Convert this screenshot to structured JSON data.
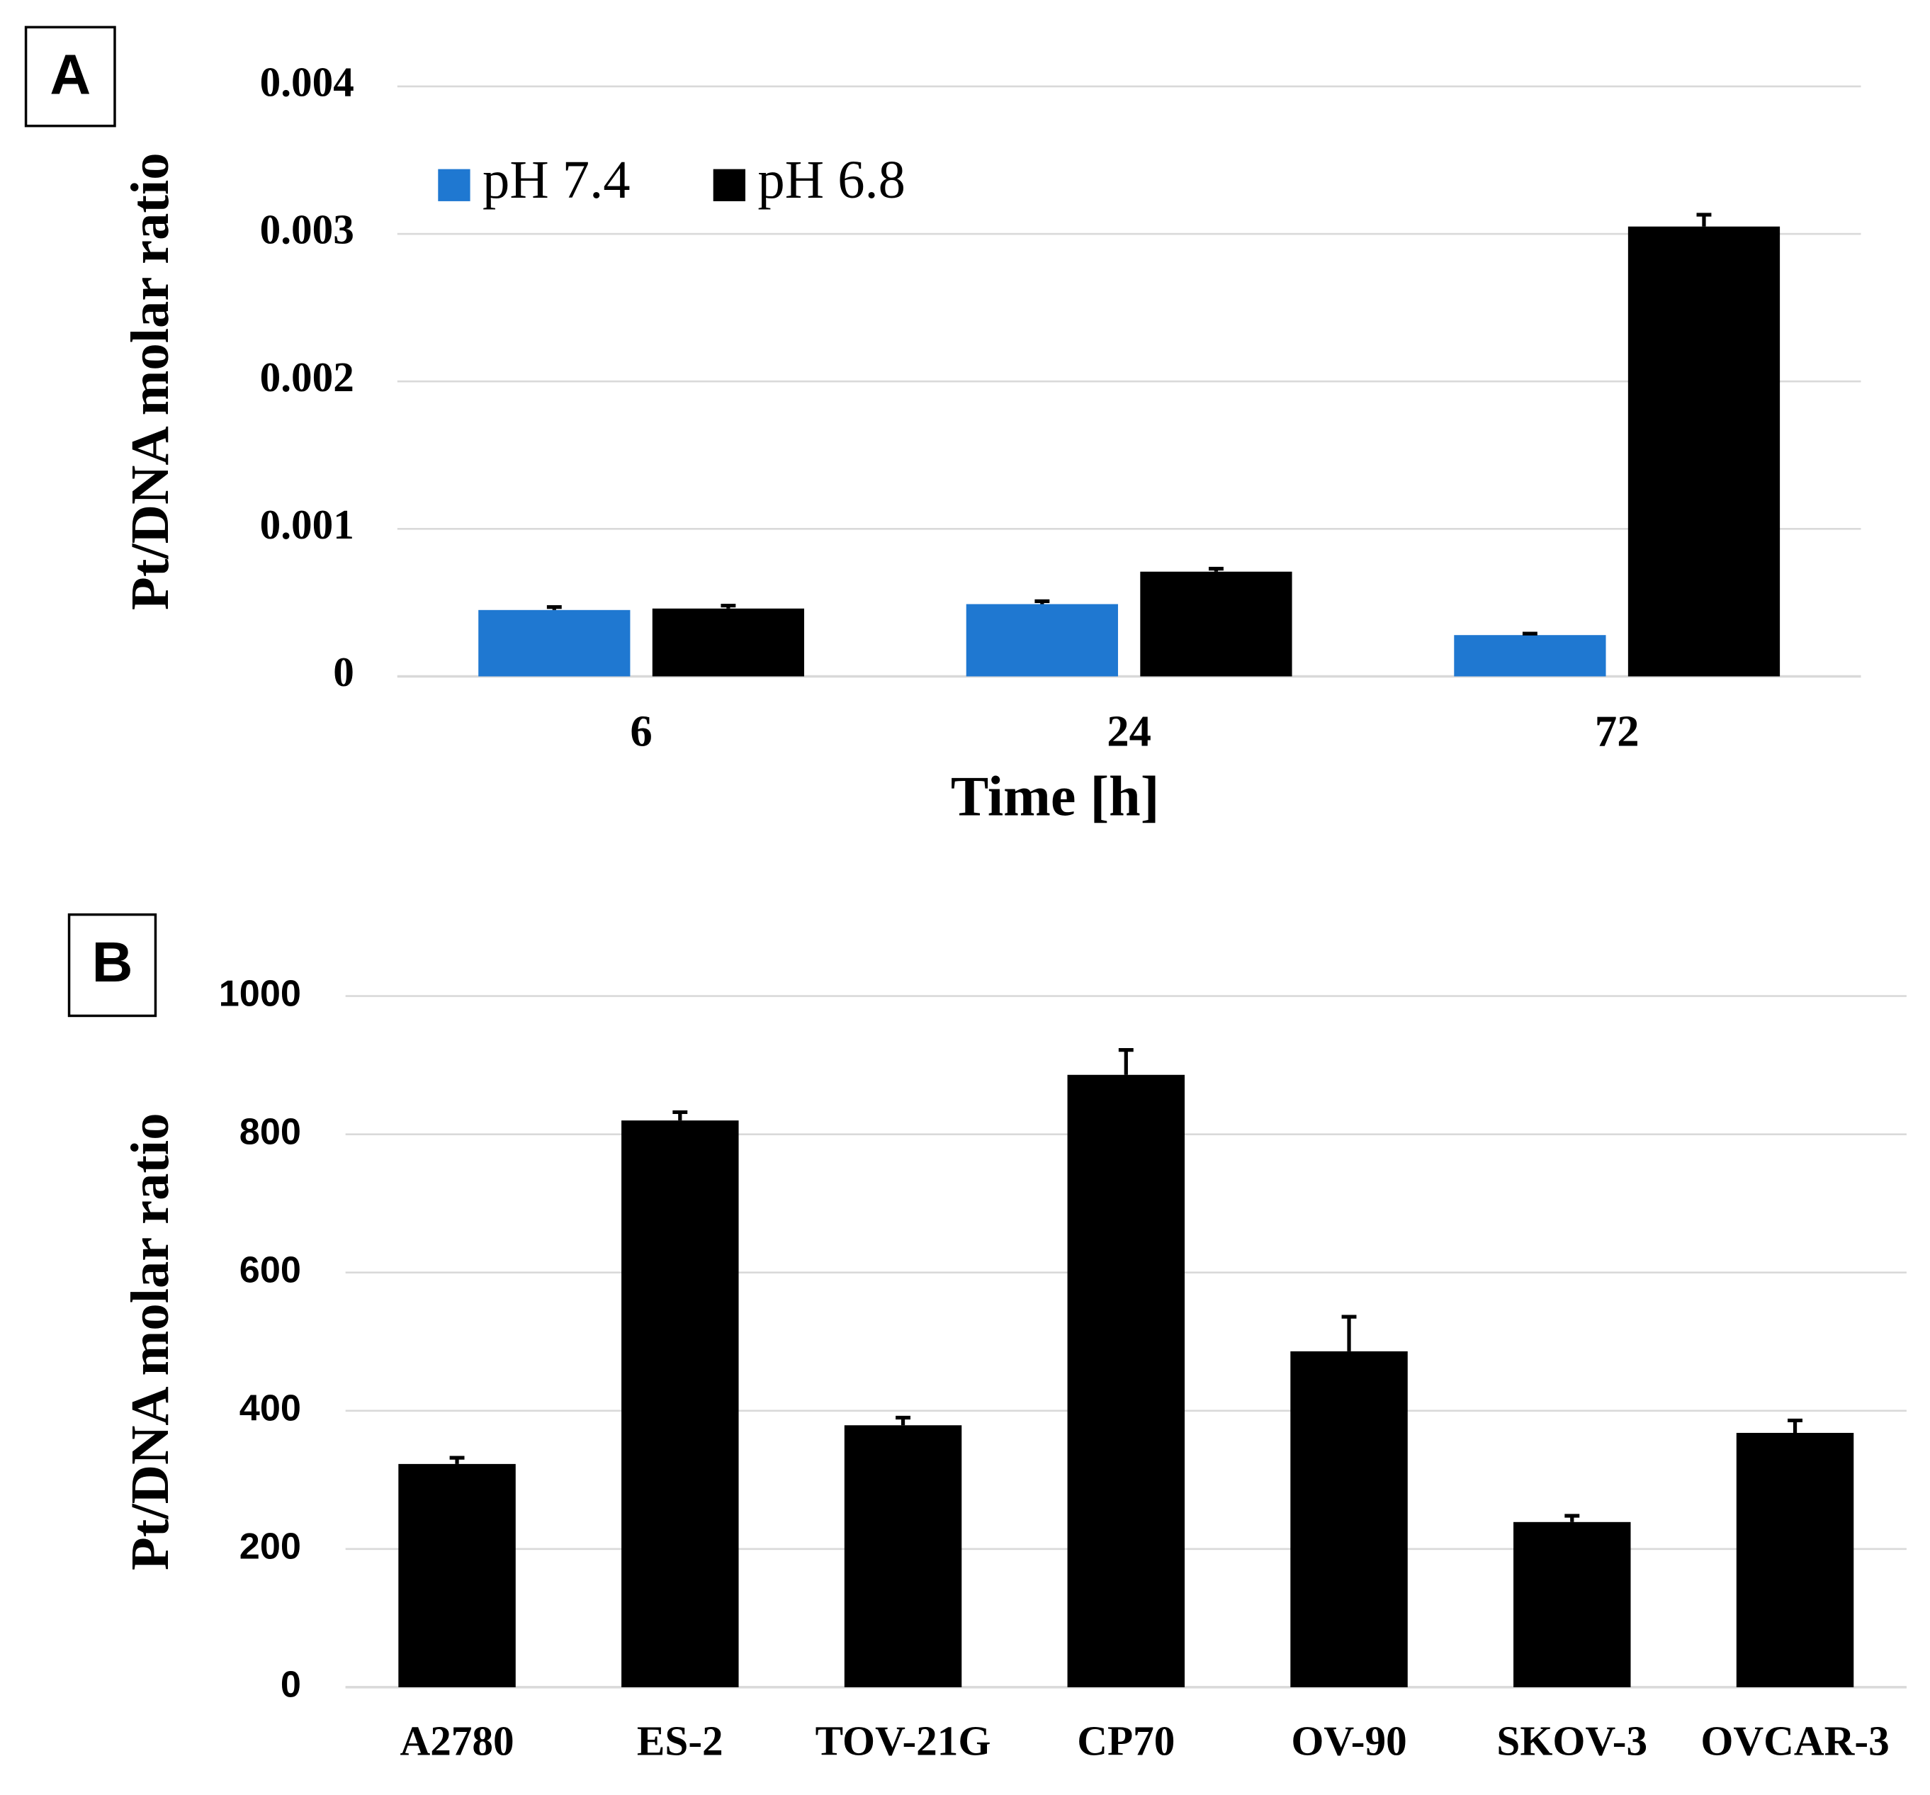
{
  "chart_data": [
    {
      "type": "bar",
      "panel_label": "A",
      "y_label": "Pt/DNA  molar ratio",
      "x_label": "Time [h]",
      "categories": [
        "6",
        "24",
        "72"
      ],
      "series": [
        {
          "name": "pH 7.4",
          "color": "#1f78d1",
          "values": [
            0.00045,
            0.00049,
            0.00028
          ],
          "errors": [
            2e-05,
            2e-05,
            1e-05
          ]
        },
        {
          "name": "pH 6.8",
          "color": "#000000",
          "values": [
            0.00046,
            0.00071,
            0.00305
          ],
          "errors": [
            2e-05,
            2e-05,
            8e-05
          ]
        }
      ],
      "ylim": [
        0,
        0.004
      ],
      "yticks": [
        0,
        0.001,
        0.002,
        0.003,
        0.004
      ],
      "grid": true,
      "legend": "top-left"
    },
    {
      "type": "bar",
      "panel_label": "B",
      "y_label": "Pt/DNA  molar ratio",
      "categories": [
        "A2780",
        "ES-2",
        "TOV-21G",
        "CP70",
        "OV-90",
        "SKOV-3",
        "OVCAR-3"
      ],
      "values": [
        323,
        820,
        379,
        886,
        486,
        239,
        368
      ],
      "errors": [
        9,
        12,
        11,
        36,
        50,
        9,
        18
      ],
      "color": "#000000",
      "ylim": [
        0,
        1000
      ],
      "yticks": [
        0,
        200,
        400,
        600,
        800,
        1000
      ],
      "grid": true
    }
  ]
}
